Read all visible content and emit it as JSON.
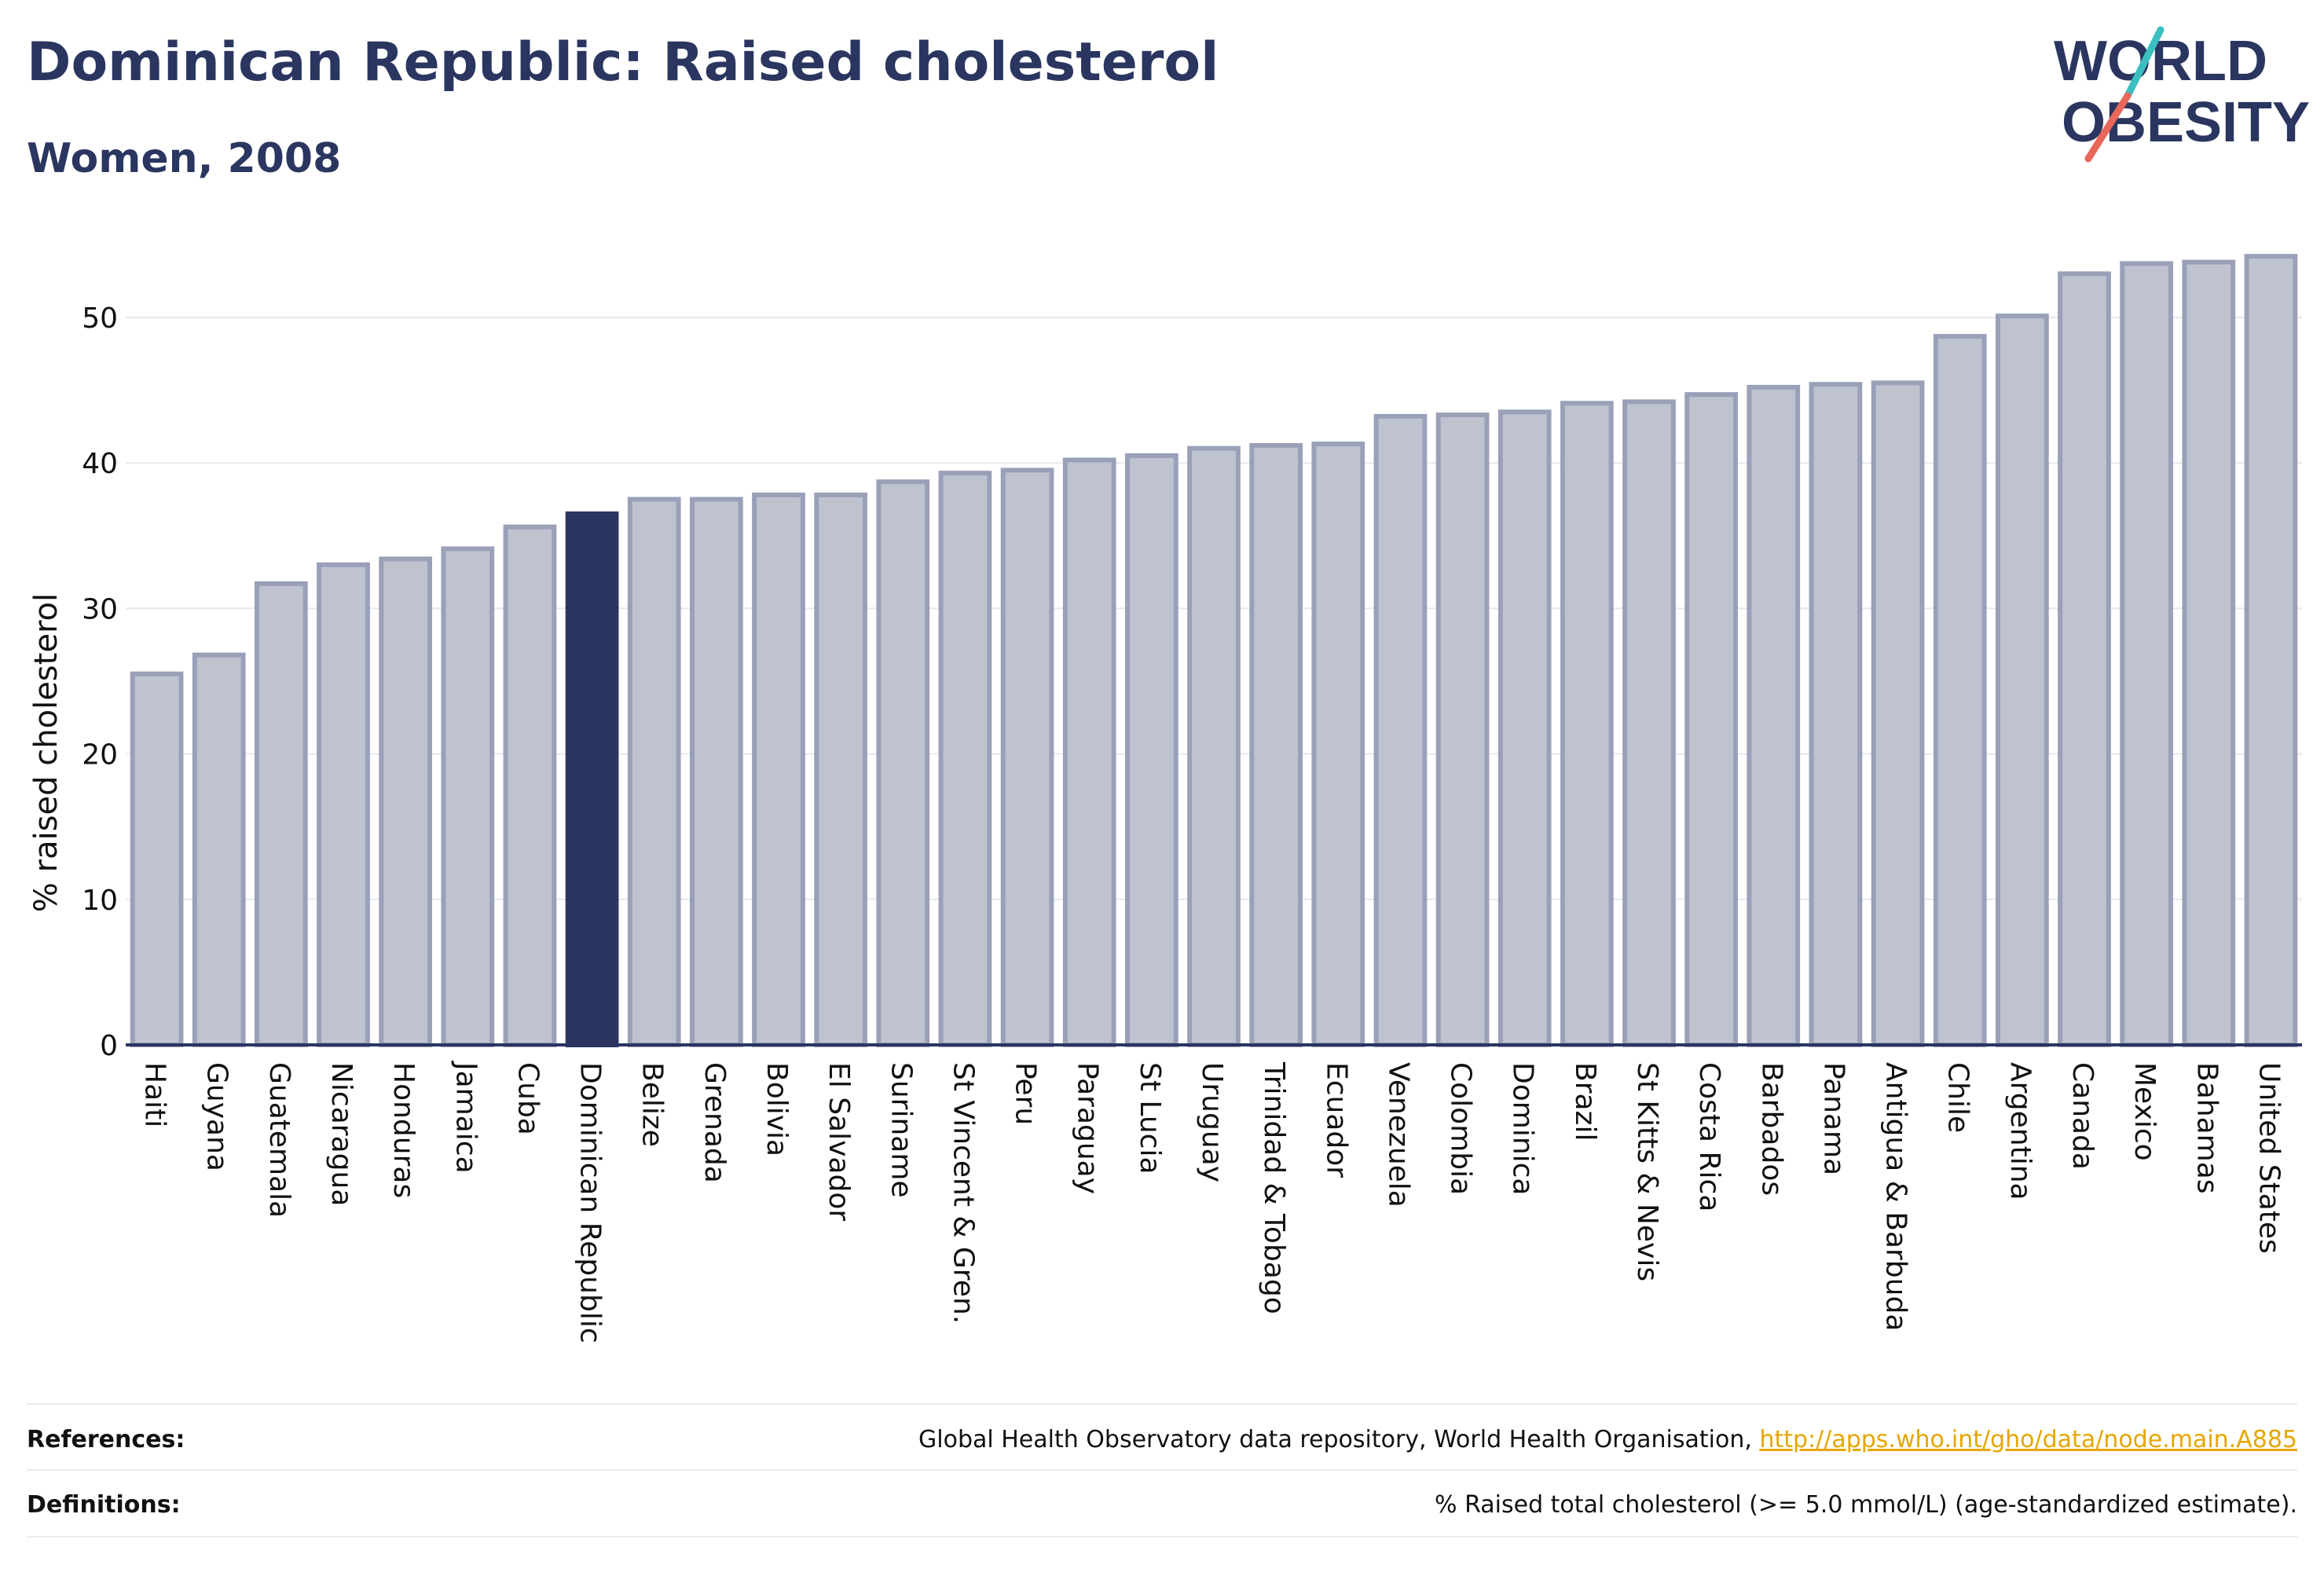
{
  "title": "Dominican Republic: Raised cholesterol",
  "subtitle": "Women, 2008",
  "logo": {
    "line1": "WORLD",
    "line2": "OBESITY",
    "accent_teal": "#3bbfc0",
    "accent_red": "#e8685a"
  },
  "colors": {
    "bar": "#bfc3d0",
    "bar_edge": "#9aa0b8",
    "highlight": "#2a3660",
    "text": "#2a3660",
    "grid": "#e6e8ee"
  },
  "chart_data": {
    "type": "bar",
    "ylabel": "% raised cholesterol",
    "ylim": [
      0,
      55
    ],
    "yticks": [
      0,
      10,
      20,
      30,
      40,
      50
    ],
    "grid": true,
    "highlight": "Dominican Republic",
    "categories": [
      "Haiti",
      "Guyana",
      "Guatemala",
      "Nicaragua",
      "Honduras",
      "Jamaica",
      "Cuba",
      "Dominican Republic",
      "Belize",
      "Grenada",
      "Bolivia",
      "El Salvador",
      "Suriname",
      "St Vincent & Gren.",
      "Peru",
      "Paraguay",
      "St Lucia",
      "Uruguay",
      "Trinidad & Tobago",
      "Ecuador",
      "Venezuela",
      "Colombia",
      "Dominica",
      "Brazil",
      "St Kitts & Nevis",
      "Costa Rica",
      "Barbados",
      "Panama",
      "Antigua & Barbuda",
      "Chile",
      "Argentina",
      "Canada",
      "Mexico",
      "Bahamas",
      "United States"
    ],
    "values": [
      25.5,
      26.8,
      31.7,
      33.0,
      33.4,
      34.1,
      35.6,
      36.5,
      37.5,
      37.5,
      37.8,
      37.8,
      38.7,
      39.3,
      39.5,
      40.2,
      40.5,
      41.0,
      41.2,
      41.3,
      43.2,
      43.3,
      43.5,
      44.1,
      44.2,
      44.7,
      45.2,
      45.4,
      45.5,
      48.7,
      50.1,
      53.0,
      53.7,
      53.8,
      54.2
    ]
  },
  "footer": {
    "references_label": "References:",
    "references_text": "Global Health Observatory data repository, World Health Organisation, ",
    "references_link": "http://apps.who.int/gho/data/node.main.A885",
    "definitions_label": "Definitions:",
    "definitions_text": "% Raised total cholesterol (>= 5.0 mmol/L) (age-standardized estimate)."
  }
}
